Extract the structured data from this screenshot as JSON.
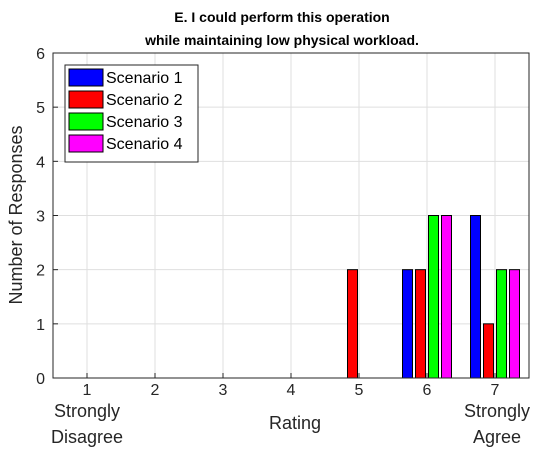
{
  "chart_data": {
    "type": "bar",
    "title_lines": [
      "E. I could perform this operation",
      "while maintaining low physical workload."
    ],
    "xlabel": "Rating",
    "ylabel": "Number of Responses",
    "categories": [
      "1",
      "2",
      "3",
      "4",
      "5",
      "6",
      "7"
    ],
    "xlim": [
      0.5,
      7.5
    ],
    "ylim": [
      0,
      6
    ],
    "yticks": [
      "0",
      "1",
      "2",
      "3",
      "4",
      "5",
      "6"
    ],
    "x_endpoint_labels": {
      "left": [
        "Strongly",
        "Disagree"
      ],
      "right": [
        "Strongly",
        "Agree"
      ]
    },
    "grid": true,
    "legend_position": "top-left",
    "series": [
      {
        "name": "Scenario 1",
        "color": "#0000ff",
        "values": [
          0,
          0,
          0,
          0,
          0,
          2,
          3
        ]
      },
      {
        "name": "Scenario 2",
        "color": "#ff0000",
        "values": [
          0,
          0,
          0,
          0,
          2,
          2,
          1
        ]
      },
      {
        "name": "Scenario 3",
        "color": "#00ff00",
        "values": [
          0,
          0,
          0,
          0,
          0,
          3,
          2
        ]
      },
      {
        "name": "Scenario 4",
        "color": "#ff00ff",
        "values": [
          0,
          0,
          0,
          0,
          0,
          3,
          2
        ]
      }
    ]
  }
}
